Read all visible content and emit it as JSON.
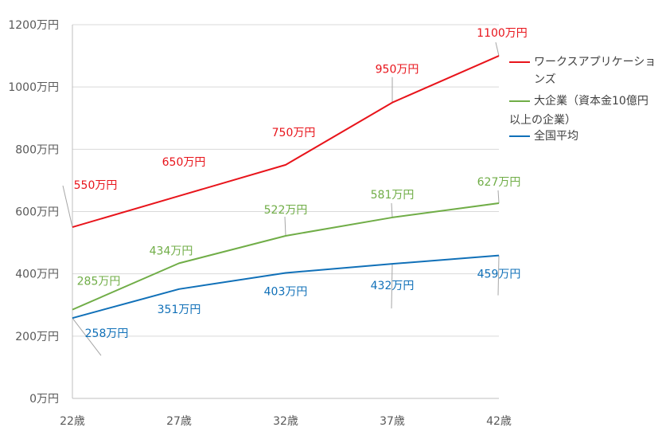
{
  "chart_data": {
    "type": "line",
    "categories": [
      "22歳",
      "27歳",
      "32歳",
      "37歳",
      "42歳"
    ],
    "y_ticks": [
      "0万円",
      "200万円",
      "400万円",
      "600万円",
      "800万円",
      "1000万円",
      "1200万円"
    ],
    "ylim": [
      0,
      1200
    ],
    "grid": true,
    "legend_position": "right",
    "series": [
      {
        "name": "ワークスアプリケーションズ",
        "color": "#e8141b",
        "values": [
          550,
          650,
          750,
          950,
          1100
        ],
        "labels": [
          "550万円",
          "650万円",
          "750万円",
          "950万円",
          "1100万円"
        ]
      },
      {
        "name": "大企業（資本金10億円以上の企業）",
        "color": "#70ad47",
        "values": [
          285,
          434,
          522,
          581,
          627
        ],
        "labels": [
          "285万円",
          "434万円",
          "522万円",
          "581万円",
          "627万円"
        ]
      },
      {
        "name": "全国平均",
        "color": "#1070b8",
        "values": [
          258,
          351,
          403,
          432,
          459
        ],
        "labels": [
          "258万円",
          "351万円",
          "403万円",
          "432万円",
          "459万円"
        ]
      }
    ]
  },
  "legend": {
    "items": [
      {
        "line1": "ワークスアプリケーションズ",
        "line2": ""
      },
      {
        "line1": "大企業（資本金10億円",
        "line2": "以上の企業）"
      },
      {
        "line1": "全国平均",
        "line2": ""
      }
    ]
  }
}
